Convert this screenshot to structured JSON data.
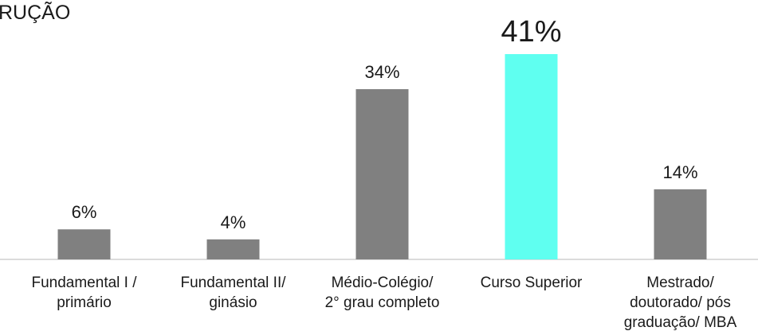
{
  "chart_data": {
    "type": "bar",
    "title": "RUÇÃO",
    "categories": [
      [
        "Fundamental I /",
        "primário"
      ],
      [
        "Fundamental II/",
        "ginásio"
      ],
      [
        "Médio-Colégio/",
        "2° grau completo"
      ],
      [
        "Curso Superior"
      ],
      [
        "Mestrado/",
        "doutorado/ pós",
        "graduação/ MBA"
      ]
    ],
    "values": [
      6,
      4,
      34,
      41,
      14
    ],
    "value_labels": [
      "6%",
      "4%",
      "34%",
      "41%",
      "14%"
    ],
    "colors": [
      "#808080",
      "#808080",
      "#808080",
      "#5ffff0",
      "#808080"
    ]
  }
}
